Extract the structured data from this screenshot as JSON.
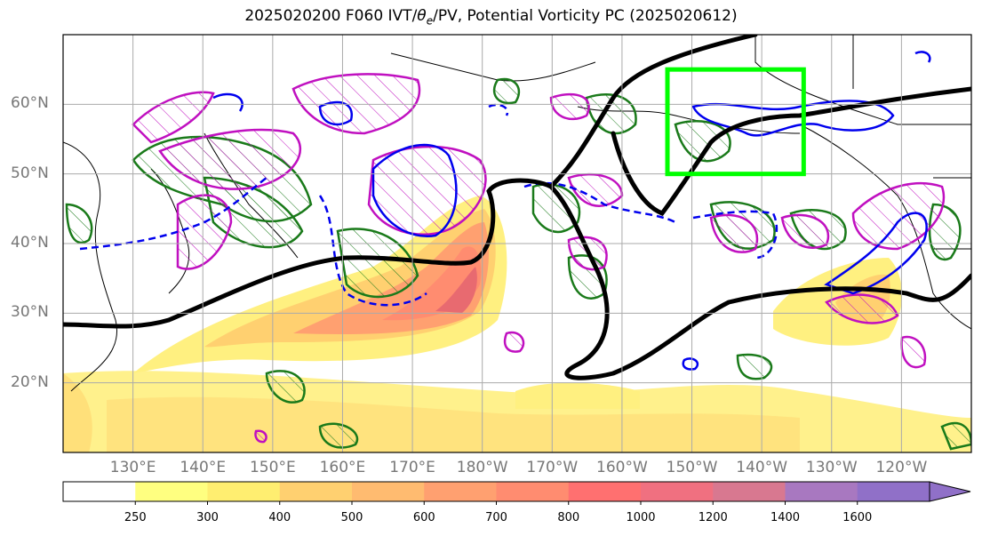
{
  "title": {
    "main": "2025020200 F060 IVT/",
    "theta": "θ",
    "theta_sub": "e",
    "rest": "/PV, Potential Vorticity PC (2025020612)"
  },
  "map": {
    "lon_range": [
      120,
      250
    ],
    "lat_range": [
      10,
      70
    ],
    "lat_labels": [
      {
        "lat": 60,
        "text": "60°N"
      },
      {
        "lat": 50,
        "text": "50°N"
      },
      {
        "lat": 40,
        "text": "40°N"
      },
      {
        "lat": 30,
        "text": "30°N"
      },
      {
        "lat": 20,
        "text": "20°N"
      }
    ],
    "lon_labels": [
      {
        "lon": 130,
        "text": "130°E"
      },
      {
        "lon": 140,
        "text": "140°E"
      },
      {
        "lon": 150,
        "text": "150°E"
      },
      {
        "lon": 160,
        "text": "160°E"
      },
      {
        "lon": 170,
        "text": "170°E"
      },
      {
        "lon": 180,
        "text": "180°W"
      },
      {
        "lon": 190,
        "text": "170°W"
      },
      {
        "lon": 200,
        "text": "160°W"
      },
      {
        "lon": 210,
        "text": "150°W"
      },
      {
        "lon": 220,
        "text": "140°W"
      },
      {
        "lon": 230,
        "text": "130°W"
      },
      {
        "lon": 240,
        "text": "120°W"
      }
    ],
    "target_box": {
      "lon_min": 206.5,
      "lon_max": 226,
      "lat_min": 50,
      "lat_max": 65,
      "color": "#00ff00"
    }
  },
  "colorbar": {
    "levels": [
      "250",
      "300",
      "400",
      "500",
      "600",
      "700",
      "800",
      "1000",
      "1200",
      "1400",
      "1600"
    ],
    "colors": [
      "#ffffff",
      "#ffff80",
      "#ffee70",
      "#ffd070",
      "#ffbb70",
      "#ffa070",
      "#ff8c70",
      "#ff7070",
      "#f07080",
      "#d87890",
      "#a878c0",
      "#9070c8"
    ]
  },
  "colors": {
    "ivt_core": "#e86a70",
    "pv_green": "#1a7a1a",
    "pv_blue": "#0000ee",
    "pv_magenta": "#c010c0",
    "jet_black": "#000000",
    "grid": "#aaaaaa"
  }
}
